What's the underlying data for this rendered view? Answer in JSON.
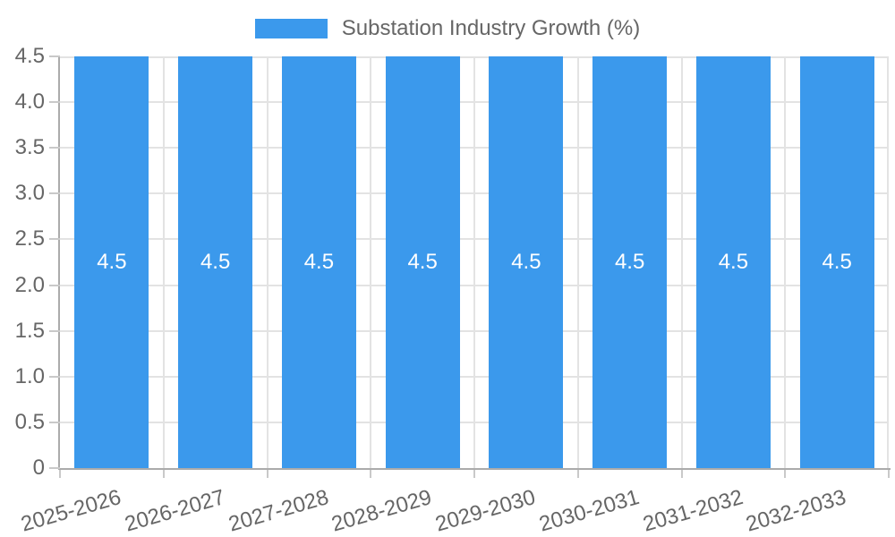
{
  "chart_data": {
    "type": "bar",
    "title": "Substation Industry Growth (%)",
    "legend": {
      "position": "top",
      "label": "Substation Industry Growth (%)"
    },
    "categories": [
      "2025-2026",
      "2026-2027",
      "2027-2028",
      "2028-2029",
      "2029-2030",
      "2030-2031",
      "2031-2032",
      "2032-2033"
    ],
    "values": [
      4.5,
      4.5,
      4.5,
      4.5,
      4.5,
      4.5,
      4.5,
      4.5
    ],
    "value_labels": [
      "4.5",
      "4.5",
      "4.5",
      "4.5",
      "4.5",
      "4.5",
      "4.5",
      "4.5"
    ],
    "xlabel": "",
    "ylabel": "",
    "ylim": [
      0,
      4.5
    ],
    "ytick_step": 0.5,
    "yticks": [
      "0",
      "0.5",
      "1.0",
      "1.5",
      "2.0",
      "2.5",
      "3.0",
      "3.5",
      "4.0",
      "4.5"
    ],
    "grid": true,
    "x_label_rotation_deg": -16,
    "colors": {
      "bar": "#3b99ec",
      "bar_value_label": "#ffffff",
      "axis_text": "#666666",
      "gridline": "#e3e3e3",
      "tick_mark": "#c9c9c9",
      "axis_line": "#ababab",
      "background": "#ffffff"
    }
  }
}
